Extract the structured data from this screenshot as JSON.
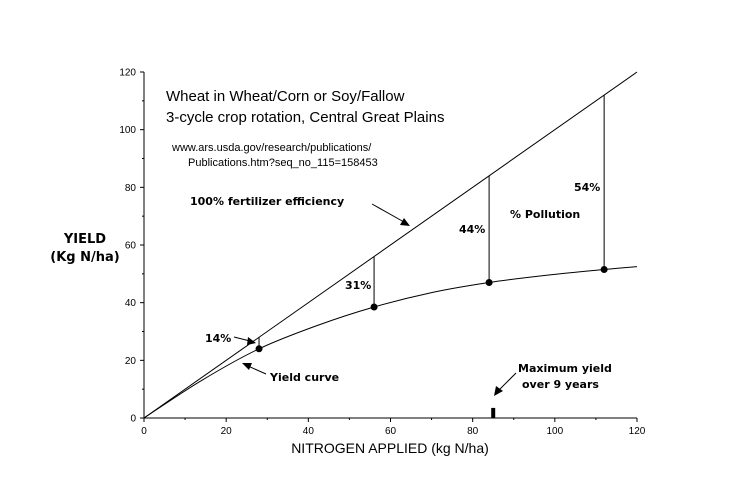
{
  "chart_data": {
    "type": "line",
    "title": "Wheat in Wheat/Corn or Soy/Fallow",
    "subtitle": "3-cycle crop rotation, Central Great Plains",
    "source_lines": [
      "www.ars.usda.gov/research/publications/",
      "Publications.htm?seq_no_115=158453"
    ],
    "xlabel": "NITROGEN APPLIED (kg N/ha)",
    "ylabel_lines": [
      "YIELD",
      "(Kg N/ha)"
    ],
    "xlim": [
      0,
      120
    ],
    "ylim": [
      0,
      120
    ],
    "x_ticks": [
      0,
      20,
      40,
      60,
      80,
      100,
      120
    ],
    "y_ticks": [
      0,
      20,
      40,
      60,
      80,
      100,
      120
    ],
    "grid": false,
    "series": [
      {
        "name": "100% fertilizer efficiency",
        "x": [
          0,
          120
        ],
        "y": [
          0,
          120
        ]
      },
      {
        "name": "Yield curve",
        "x": [
          0,
          14,
          28,
          42,
          56,
          70,
          84,
          98,
          112,
          120
        ],
        "y": [
          0,
          13,
          24,
          32,
          38.5,
          43.5,
          47,
          49.5,
          51.5,
          52.5
        ]
      }
    ],
    "points": [
      {
        "x": 28,
        "y": 24
      },
      {
        "x": 56,
        "y": 38.5
      },
      {
        "x": 84,
        "y": 47
      },
      {
        "x": 112,
        "y": 51.5
      }
    ],
    "annotations": {
      "efficiency_label": "100% fertilizer efficiency",
      "yield_curve_label": "Yield curve",
      "pollution_label": "% Pollution",
      "pct_14": "14%",
      "pct_31": "31%",
      "pct_44": "44%",
      "pct_54": "54%",
      "max_yield_line1": "Maximum yield",
      "max_yield_line2": "over 9 years"
    },
    "max_yield_marker": {
      "x": 85,
      "y_top": 3.5
    }
  }
}
